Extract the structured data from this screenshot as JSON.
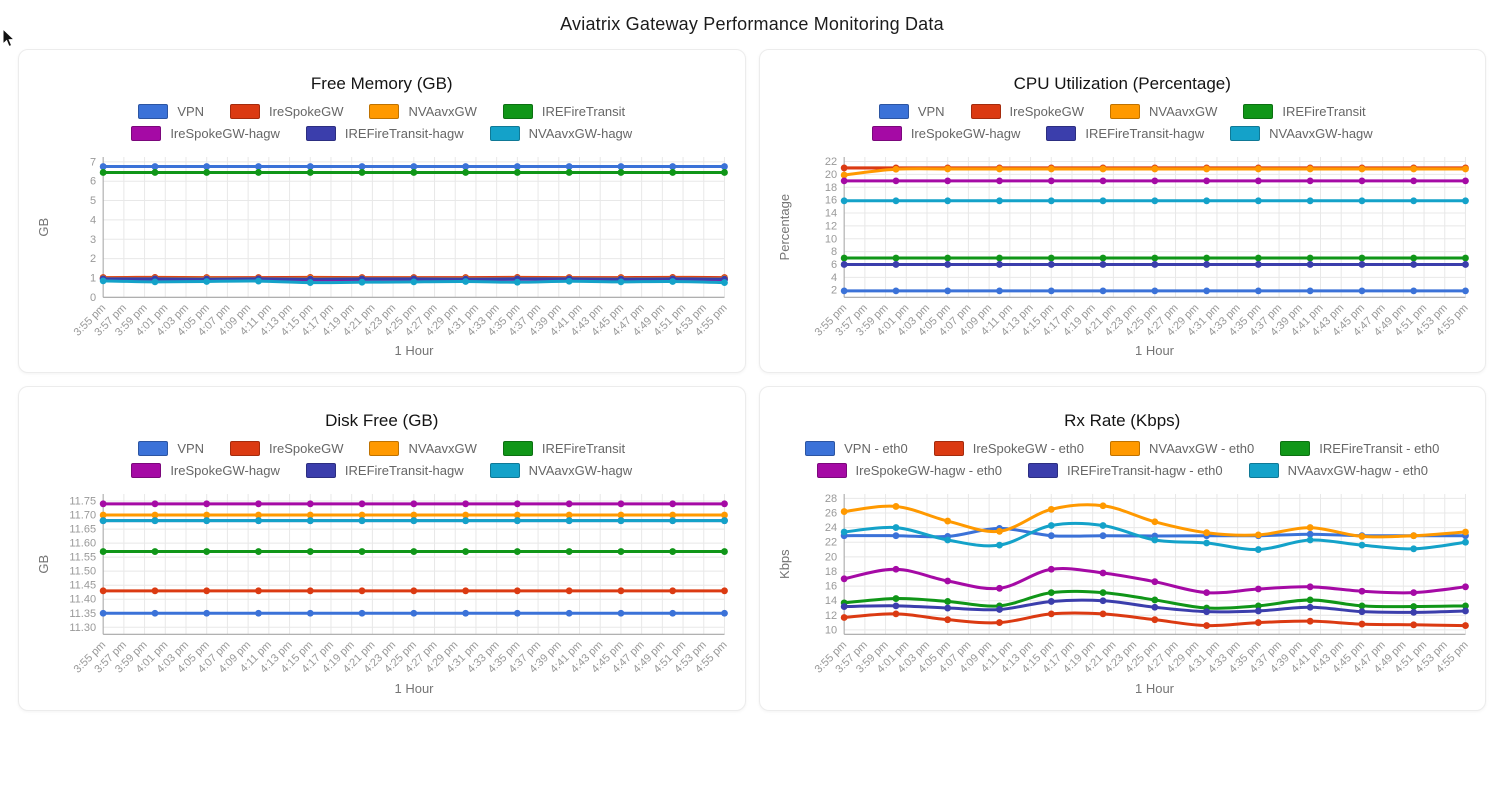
{
  "page": {
    "title": "Aviatrix Gateway Performance Monitoring Data"
  },
  "x_axis": {
    "tick_labels": [
      "3:55 pm",
      "3:57 pm",
      "3:59 pm",
      "4:01 pm",
      "4:03 pm",
      "4:05 pm",
      "4:07 pm",
      "4:09 pm",
      "4:11 pm",
      "4:13 pm",
      "4:15 pm",
      "4:17 pm",
      "4:19 pm",
      "4:21 pm",
      "4:23 pm",
      "4:25 pm",
      "4:27 pm",
      "4:29 pm",
      "4:31 pm",
      "4:33 pm",
      "4:35 pm",
      "4:37 pm",
      "4:39 pm",
      "4:41 pm",
      "4:43 pm",
      "4:45 pm",
      "4:47 pm",
      "4:49 pm",
      "4:51 pm",
      "4:53 pm",
      "4:55 pm"
    ]
  },
  "chart_data": [
    {
      "type": "line",
      "title": "Free Memory (GB)",
      "ylabel": "GB",
      "xlabel": "1 Hour",
      "grid": true,
      "legend_position": "top",
      "y_ticks": [
        "0",
        "1",
        "2",
        "3",
        "4",
        "5",
        "6",
        "7"
      ],
      "ylim": [
        0,
        7.25
      ],
      "x": [
        "3:55 pm",
        "4:00 pm",
        "4:05 pm",
        "4:10 pm",
        "4:15 pm",
        "4:20 pm",
        "4:25 pm",
        "4:30 pm",
        "4:35 pm",
        "4:40 pm",
        "4:45 pm",
        "4:50 pm",
        "4:55 pm"
      ],
      "series": [
        {
          "name": "VPN",
          "color": "#3B72D8",
          "values": [
            6.76,
            6.76,
            6.76,
            6.76,
            6.76,
            6.76,
            6.76,
            6.76,
            6.76,
            6.76,
            6.76,
            6.76,
            6.76
          ]
        },
        {
          "name": "IreSpokeGW",
          "color": "#DB3A12",
          "values": [
            1.02,
            1.03,
            1.02,
            1.02,
            1.03,
            1.02,
            1.02,
            1.02,
            1.03,
            1.02,
            1.02,
            1.03,
            1.02
          ]
        },
        {
          "name": "NVAavxGW",
          "color": "#FF9900",
          "values": [
            0.98,
            0.98,
            0.98,
            0.97,
            0.98,
            0.98,
            0.98,
            0.97,
            0.98,
            0.98,
            0.97,
            0.98,
            0.97
          ]
        },
        {
          "name": "IREFireTransit",
          "color": "#109618",
          "values": [
            6.45,
            6.45,
            6.45,
            6.45,
            6.45,
            6.45,
            6.45,
            6.45,
            6.45,
            6.45,
            6.45,
            6.45,
            6.45
          ]
        },
        {
          "name": "IreSpokeGW-hagw",
          "color": "#A50AA5",
          "values": [
            0.95,
            0.94,
            0.95,
            0.93,
            0.9,
            0.92,
            0.94,
            0.9,
            0.93,
            0.95,
            0.93,
            0.94,
            0.9
          ]
        },
        {
          "name": "IREFireTransit-hagw",
          "color": "#3B3EAC",
          "values": [
            0.96,
            0.96,
            0.95,
            0.96,
            0.95,
            0.96,
            0.96,
            0.95,
            0.96,
            0.96,
            0.95,
            0.96,
            0.95
          ]
        },
        {
          "name": "NVAavxGW-hagw",
          "color": "#14A2C9",
          "values": [
            0.85,
            0.8,
            0.82,
            0.84,
            0.76,
            0.78,
            0.8,
            0.82,
            0.78,
            0.83,
            0.8,
            0.82,
            0.76
          ]
        }
      ]
    },
    {
      "type": "line",
      "title": "CPU Utilization (Percentage)",
      "ylabel": "Percentage",
      "xlabel": "1 Hour",
      "grid": true,
      "legend_position": "top",
      "y_ticks": [
        "2",
        "4",
        "6",
        "8",
        "10",
        "12",
        "14",
        "16",
        "18",
        "20",
        "22"
      ],
      "ylim": [
        0.9,
        22.7
      ],
      "x": [
        "3:55 pm",
        "4:00 pm",
        "4:05 pm",
        "4:10 pm",
        "4:15 pm",
        "4:20 pm",
        "4:25 pm",
        "4:30 pm",
        "4:35 pm",
        "4:40 pm",
        "4:45 pm",
        "4:50 pm",
        "4:55 pm"
      ],
      "series": [
        {
          "name": "VPN",
          "color": "#3B72D8",
          "values": [
            1.9,
            1.9,
            1.9,
            1.9,
            1.9,
            1.9,
            1.9,
            1.9,
            1.9,
            1.9,
            1.9,
            1.9,
            1.9
          ]
        },
        {
          "name": "IreSpokeGW",
          "color": "#DB3A12",
          "values": [
            21.0,
            21.0,
            21.0,
            21.0,
            21.0,
            21.0,
            21.0,
            21.0,
            21.0,
            21.0,
            21.0,
            21.0,
            21.0
          ]
        },
        {
          "name": "NVAavxGW",
          "color": "#FF9900",
          "values": [
            19.9,
            20.8,
            20.85,
            20.85,
            20.85,
            20.85,
            20.85,
            20.85,
            20.85,
            20.85,
            20.85,
            20.85,
            20.85
          ]
        },
        {
          "name": "IREFireTransit",
          "color": "#109618",
          "values": [
            7.0,
            7.0,
            7.0,
            7.0,
            7.0,
            7.0,
            7.0,
            7.0,
            7.0,
            7.0,
            7.0,
            7.0,
            7.0
          ]
        },
        {
          "name": "IreSpokeGW-hagw",
          "color": "#A50AA5",
          "values": [
            19.0,
            19.0,
            19.0,
            19.0,
            19.0,
            19.0,
            19.0,
            19.0,
            19.0,
            19.0,
            19.0,
            19.0,
            19.0
          ]
        },
        {
          "name": "IREFireTransit-hagw",
          "color": "#3B3EAC",
          "values": [
            6.0,
            6.0,
            6.0,
            6.0,
            6.0,
            6.0,
            6.0,
            6.0,
            6.0,
            6.0,
            6.0,
            6.0,
            6.0
          ]
        },
        {
          "name": "NVAavxGW-hagw",
          "color": "#14A2C9",
          "values": [
            15.9,
            15.9,
            15.9,
            15.9,
            15.9,
            15.9,
            15.9,
            15.9,
            15.9,
            15.9,
            15.9,
            15.9,
            15.9
          ]
        }
      ]
    },
    {
      "type": "line",
      "title": "Disk Free (GB)",
      "ylabel": "GB",
      "xlabel": "1 Hour",
      "grid": true,
      "legend_position": "top",
      "y_ticks": [
        "11.30",
        "11.35",
        "11.40",
        "11.45",
        "11.50",
        "11.55",
        "11.60",
        "11.65",
        "11.70",
        "11.75"
      ],
      "ylim": [
        11.275,
        11.775
      ],
      "x": [
        "3:55 pm",
        "4:00 pm",
        "4:05 pm",
        "4:10 pm",
        "4:15 pm",
        "4:20 pm",
        "4:25 pm",
        "4:30 pm",
        "4:35 pm",
        "4:40 pm",
        "4:45 pm",
        "4:50 pm",
        "4:55 pm"
      ],
      "series": [
        {
          "name": "VPN",
          "color": "#3B72D8",
          "values": [
            11.35,
            11.35,
            11.35,
            11.35,
            11.35,
            11.35,
            11.35,
            11.35,
            11.35,
            11.35,
            11.35,
            11.35,
            11.35
          ]
        },
        {
          "name": "IreSpokeGW",
          "color": "#DB3A12",
          "values": [
            11.43,
            11.43,
            11.43,
            11.43,
            11.43,
            11.43,
            11.43,
            11.43,
            11.43,
            11.43,
            11.43,
            11.43,
            11.43
          ]
        },
        {
          "name": "NVAavxGW",
          "color": "#FF9900",
          "values": [
            11.7,
            11.7,
            11.7,
            11.7,
            11.7,
            11.7,
            11.7,
            11.7,
            11.7,
            11.7,
            11.7,
            11.7,
            11.7
          ]
        },
        {
          "name": "IREFireTransit",
          "color": "#109618",
          "values": [
            11.57,
            11.57,
            11.57,
            11.57,
            11.57,
            11.57,
            11.57,
            11.57,
            11.57,
            11.57,
            11.57,
            11.57,
            11.57
          ]
        },
        {
          "name": "IreSpokeGW-hagw",
          "color": "#A50AA5",
          "values": [
            11.74,
            11.74,
            11.74,
            11.74,
            11.74,
            11.74,
            11.74,
            11.74,
            11.74,
            11.74,
            11.74,
            11.74,
            11.74
          ]
        },
        {
          "name": "IREFireTransit-hagw",
          "color": "#3B3EAC",
          "values": [
            11.68,
            11.68,
            11.68,
            11.68,
            11.68,
            11.68,
            11.68,
            11.68,
            11.68,
            11.68,
            11.68,
            11.68,
            11.68
          ]
        },
        {
          "name": "NVAavxGW-hagw",
          "color": "#14A2C9",
          "values": [
            11.68,
            11.68,
            11.68,
            11.68,
            11.68,
            11.68,
            11.68,
            11.68,
            11.68,
            11.68,
            11.68,
            11.68,
            11.68
          ]
        }
      ]
    },
    {
      "type": "line",
      "title": "Rx Rate (Kbps)",
      "ylabel": "Kbps",
      "xlabel": "1 Hour",
      "grid": true,
      "legend_position": "top",
      "y_ticks": [
        "10",
        "12",
        "14",
        "16",
        "18",
        "20",
        "22",
        "24",
        "26",
        "28"
      ],
      "ylim": [
        9.4,
        28.6
      ],
      "x": [
        "3:55 pm",
        "4:00 pm",
        "4:05 pm",
        "4:10 pm",
        "4:15 pm",
        "4:20 pm",
        "4:25 pm",
        "4:30 pm",
        "4:35 pm",
        "4:40 pm",
        "4:45 pm",
        "4:50 pm",
        "4:55 pm"
      ],
      "series": [
        {
          "name": "VPN - eth0",
          "color": "#3B72D8",
          "values": [
            22.9,
            22.9,
            22.8,
            23.9,
            22.9,
            22.9,
            22.85,
            22.9,
            22.9,
            23.1,
            22.9,
            22.9,
            22.9
          ]
        },
        {
          "name": "IreSpokeGW - eth0",
          "color": "#DB3A12",
          "values": [
            11.7,
            12.2,
            11.4,
            11.0,
            12.2,
            12.2,
            11.4,
            10.6,
            11.0,
            11.2,
            10.8,
            10.7,
            10.6
          ]
        },
        {
          "name": "NVAavxGW - eth0",
          "color": "#FF9900",
          "values": [
            26.2,
            26.9,
            24.9,
            23.5,
            26.5,
            27.0,
            24.8,
            23.3,
            23.0,
            24.0,
            22.8,
            22.9,
            23.4
          ]
        },
        {
          "name": "IREFireTransit - eth0",
          "color": "#109618",
          "values": [
            13.7,
            14.3,
            13.9,
            13.3,
            15.1,
            15.1,
            14.1,
            13.0,
            13.3,
            14.1,
            13.3,
            13.2,
            13.3
          ]
        },
        {
          "name": "IreSpokeGW-hagw - eth0",
          "color": "#A50AA5",
          "values": [
            17.0,
            18.3,
            16.7,
            15.7,
            18.3,
            17.8,
            16.6,
            15.1,
            15.6,
            15.9,
            15.3,
            15.1,
            15.9
          ]
        },
        {
          "name": "IREFireTransit-hagw - eth0",
          "color": "#3B3EAC",
          "values": [
            13.2,
            13.3,
            13.0,
            12.8,
            13.9,
            14.0,
            13.1,
            12.5,
            12.6,
            13.1,
            12.5,
            12.4,
            12.6
          ]
        },
        {
          "name": "NVAavxGW-hagw - eth0",
          "color": "#14A2C9",
          "values": [
            23.4,
            24.0,
            22.3,
            21.6,
            24.3,
            24.3,
            22.3,
            21.9,
            21.0,
            22.3,
            21.6,
            21.1,
            22.0
          ]
        }
      ]
    }
  ]
}
